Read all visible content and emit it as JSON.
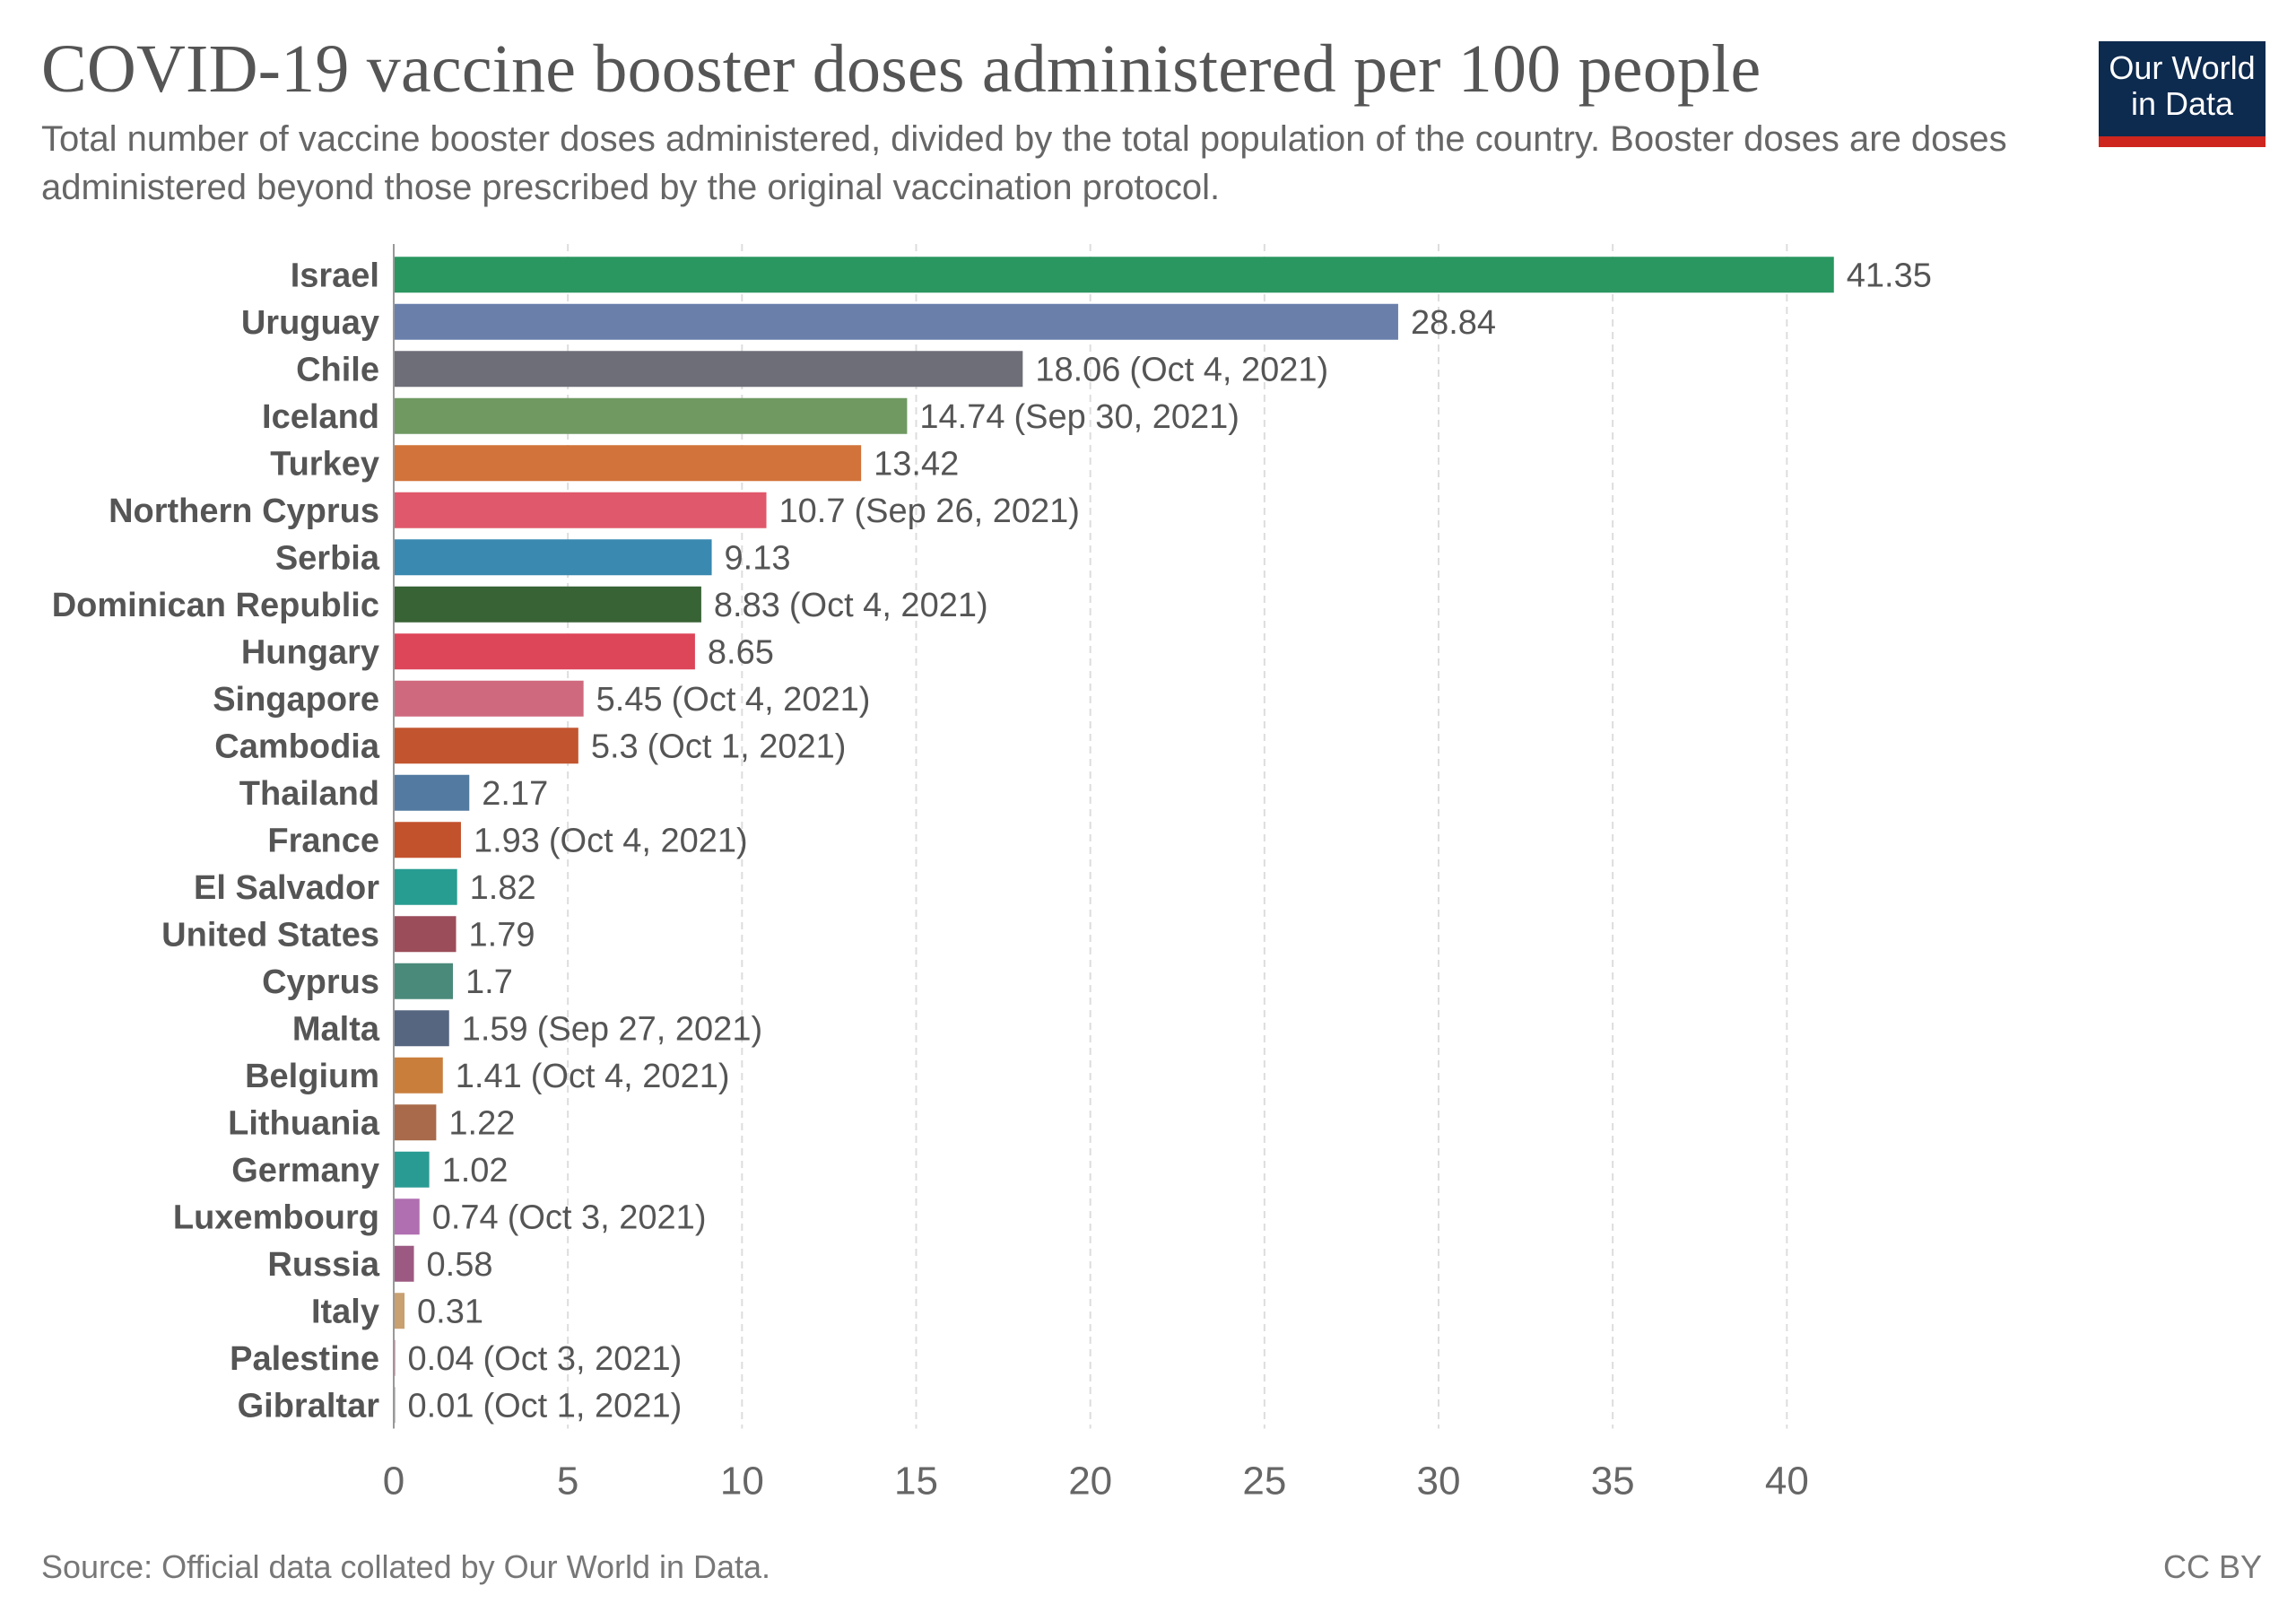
{
  "header": {
    "title": "COVID-19 vaccine booster doses administered per 100 people",
    "subtitle": "Total number of vaccine booster doses administered, divided by the total population of the country. Booster doses are doses administered beyond those prescribed by the original vaccination protocol.",
    "logo_line1": "Our World",
    "logo_line2": "in Data"
  },
  "footer": {
    "source": "Source: Official data collated by Our World in Data.",
    "license": "CC BY"
  },
  "chart_data": {
    "type": "bar",
    "orientation": "horizontal",
    "title": "COVID-19 vaccine booster doses administered per 100 people",
    "xlabel": "",
    "ylabel": "",
    "xlim": [
      0,
      42
    ],
    "xticks": [
      0,
      5,
      10,
      15,
      20,
      25,
      30,
      35,
      40
    ],
    "grid": "vertical dashed",
    "bars": [
      {
        "label": "Israel",
        "value": 41.35,
        "note": "",
        "color": "#2a9660"
      },
      {
        "label": "Uruguay",
        "value": 28.84,
        "note": "",
        "color": "#6a80ab"
      },
      {
        "label": "Chile",
        "value": 18.06,
        "note": "(Oct 4, 2021)",
        "color": "#6d6e78"
      },
      {
        "label": "Iceland",
        "value": 14.74,
        "note": "(Sep 30, 2021)",
        "color": "#6f9960"
      },
      {
        "label": "Turkey",
        "value": 13.42,
        "note": "",
        "color": "#d1733a"
      },
      {
        "label": "Northern Cyprus",
        "value": 10.7,
        "note": "(Sep 26, 2021)",
        "color": "#e0586b"
      },
      {
        "label": "Serbia",
        "value": 9.13,
        "note": "",
        "color": "#3989b0"
      },
      {
        "label": "Dominican Republic",
        "value": 8.83,
        "note": "(Oct 4, 2021)",
        "color": "#386335"
      },
      {
        "label": "Hungary",
        "value": 8.65,
        "note": "",
        "color": "#dd4559"
      },
      {
        "label": "Singapore",
        "value": 5.45,
        "note": "(Oct 4, 2021)",
        "color": "#cf6a7e"
      },
      {
        "label": "Cambodia",
        "value": 5.3,
        "note": "(Oct 1, 2021)",
        "color": "#c2552f"
      },
      {
        "label": "Thailand",
        "value": 2.17,
        "note": "",
        "color": "#537aa0"
      },
      {
        "label": "France",
        "value": 1.93,
        "note": "(Oct 4, 2021)",
        "color": "#c2522c"
      },
      {
        "label": "El Salvador",
        "value": 1.82,
        "note": "",
        "color": "#279c91"
      },
      {
        "label": "United States",
        "value": 1.79,
        "note": "",
        "color": "#9b4d5a"
      },
      {
        "label": "Cyprus",
        "value": 1.7,
        "note": "",
        "color": "#4a8a7a"
      },
      {
        "label": "Malta",
        "value": 1.59,
        "note": "(Sep 27, 2021)",
        "color": "#566580"
      },
      {
        "label": "Belgium",
        "value": 1.41,
        "note": "(Oct 4, 2021)",
        "color": "#c97e3c"
      },
      {
        "label": "Lithuania",
        "value": 1.22,
        "note": "",
        "color": "#a86a4a"
      },
      {
        "label": "Germany",
        "value": 1.02,
        "note": "",
        "color": "#299b93"
      },
      {
        "label": "Luxembourg",
        "value": 0.74,
        "note": "(Oct 3, 2021)",
        "color": "#b06fb0"
      },
      {
        "label": "Russia",
        "value": 0.58,
        "note": "",
        "color": "#9c5a82"
      },
      {
        "label": "Italy",
        "value": 0.31,
        "note": "",
        "color": "#c9a070"
      },
      {
        "label": "Palestine",
        "value": 0.04,
        "note": "(Oct 3, 2021)",
        "color": "#d0608a"
      },
      {
        "label": "Gibraltar",
        "value": 0.01,
        "note": "(Oct 1, 2021)",
        "color": "#8a8a8a"
      }
    ]
  }
}
